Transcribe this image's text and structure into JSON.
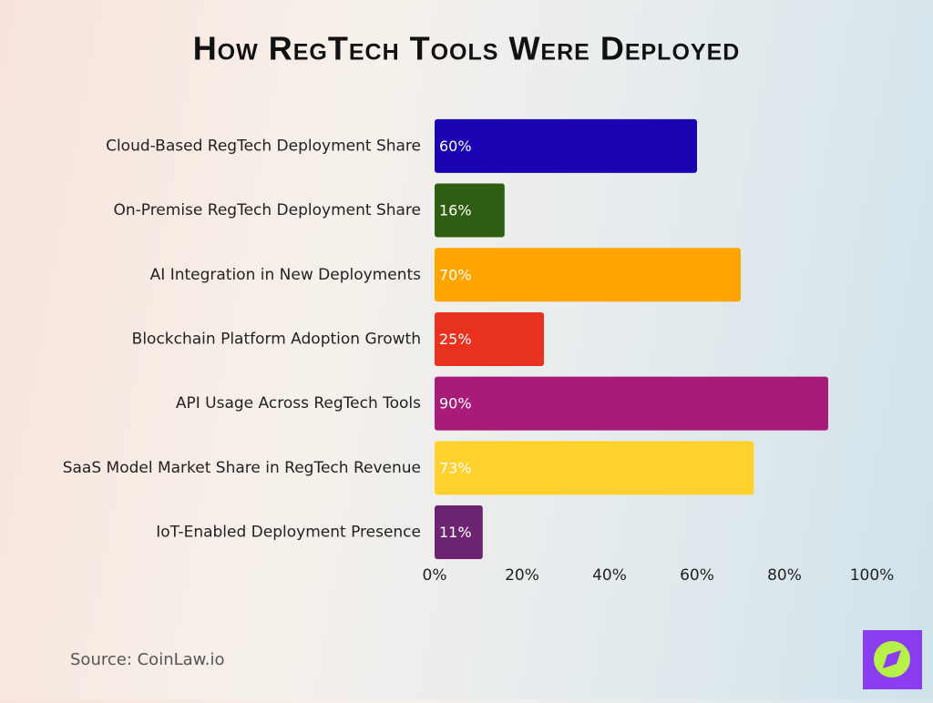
{
  "chart_data": {
    "type": "bar",
    "orientation": "horizontal",
    "title": "How RegTech Tools Were Deployed",
    "categories": [
      "Cloud-Based RegTech Deployment Share",
      "On-Premise RegTech Deployment Share",
      "AI Integration in New Deployments",
      "Blockchain Platform Adoption Growth",
      "API Usage Across RegTech Tools",
      "SaaS Model Market Share in RegTech Revenue",
      "IoT-Enabled Deployment Presence"
    ],
    "values": [
      60,
      16,
      70,
      25,
      90,
      73,
      11
    ],
    "value_labels": [
      "60%",
      "16%",
      "70%",
      "25%",
      "90%",
      "73%",
      "11%"
    ],
    "colors": [
      "#1a03b0",
      "#2f5e12",
      "#ffa502",
      "#e8321f",
      "#a91b78",
      "#ffd12e",
      "#6d2470"
    ],
    "xlim": [
      0,
      100
    ],
    "xticks": [
      {
        "value": 0,
        "label": "0%"
      },
      {
        "value": 20,
        "label": "20%"
      },
      {
        "value": 40,
        "label": "40%"
      },
      {
        "value": 60,
        "label": "60%"
      },
      {
        "value": 80,
        "label": "80%"
      },
      {
        "value": 100,
        "label": "100%"
      }
    ],
    "grid": false,
    "source": "Source: CoinLaw.io"
  }
}
